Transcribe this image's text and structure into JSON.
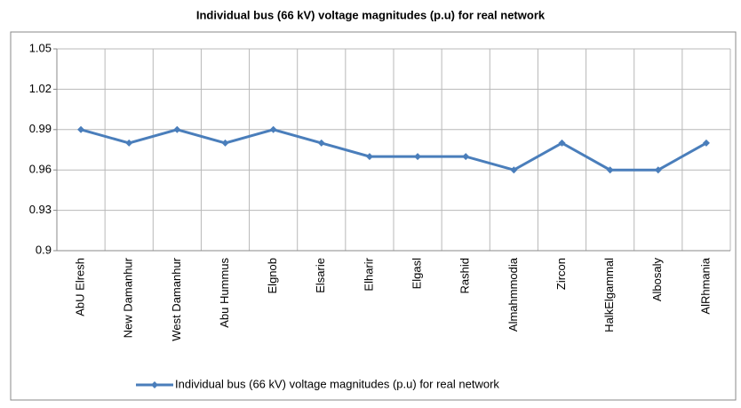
{
  "chart_data": {
    "type": "line",
    "title": "Individual bus (66 kV) voltage magnitudes (p.u) for real network",
    "categories": [
      "AbU Elresh",
      "New Damanhur",
      "West Damanhur",
      "Abu Hummus",
      "Elgnob",
      "Elsarie",
      "Elharir",
      "Elgasl",
      "Rashid",
      "Almahmmodia",
      "Zircon",
      "HalkElgammal",
      "Albosaly",
      "AlRhmania"
    ],
    "series": [
      {
        "name": "Individual bus (66 kV) voltage magnitudes (p.u) for real network",
        "color": "#4a7ebb",
        "values": [
          0.99,
          0.98,
          0.99,
          0.98,
          0.99,
          0.98,
          0.97,
          0.97,
          0.97,
          0.96,
          0.98,
          0.96,
          0.96,
          0.98
        ]
      }
    ],
    "ylim": [
      0.9,
      1.05
    ],
    "yticks": [
      0.9,
      0.93,
      0.96,
      0.99,
      1.02,
      1.05
    ],
    "grid": true,
    "legend": "bottom"
  }
}
